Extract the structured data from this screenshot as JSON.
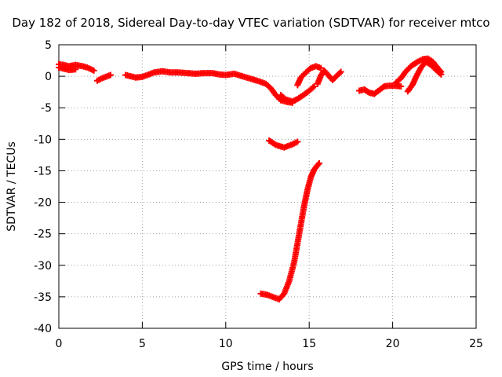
{
  "chart_data": {
    "type": "scatter",
    "title": "Day 182 of 2018, Sidereal Day-to-day VTEC variation (SDTVAR) for receiver mtco",
    "xlabel": "GPS time / hours",
    "ylabel": "SDTVAR / TECUs",
    "xlim": [
      0,
      25
    ],
    "ylim": [
      -40,
      5
    ],
    "xticks": [
      0,
      5,
      10,
      15,
      20,
      25
    ],
    "yticks": [
      5,
      0,
      -5,
      -10,
      -15,
      -20,
      -25,
      -30,
      -35,
      -40
    ],
    "grid": true,
    "marker": "plus",
    "color": "#ff0000",
    "series": [
      {
        "name": "seg1a",
        "points": [
          [
            0,
            1.9
          ],
          [
            0.3,
            1.8
          ],
          [
            0.6,
            1.6
          ],
          [
            1.0,
            1.8
          ],
          [
            1.4,
            1.6
          ],
          [
            1.7,
            1.4
          ],
          [
            2.1,
            0.9
          ]
        ]
      },
      {
        "name": "seg1b",
        "points": [
          [
            0,
            1.4
          ],
          [
            0.3,
            1.2
          ],
          [
            0.6,
            1.0
          ],
          [
            1.0,
            1.1
          ]
        ]
      },
      {
        "name": "seg2",
        "points": [
          [
            2.3,
            -0.7
          ],
          [
            2.6,
            -0.3
          ],
          [
            2.9,
            0.0
          ],
          [
            3.1,
            0.2
          ]
        ]
      },
      {
        "name": "seg3",
        "points": [
          [
            4.0,
            0.2
          ],
          [
            4.3,
            0.0
          ],
          [
            4.6,
            -0.2
          ],
          [
            5.0,
            -0.1
          ],
          [
            5.3,
            0.2
          ],
          [
            5.7,
            0.6
          ],
          [
            6.2,
            0.8
          ],
          [
            6.7,
            0.6
          ],
          [
            7.2,
            0.6
          ],
          [
            7.7,
            0.5
          ],
          [
            8.2,
            0.4
          ],
          [
            8.7,
            0.5
          ],
          [
            9.2,
            0.5
          ],
          [
            9.6,
            0.3
          ],
          [
            10.0,
            0.2
          ],
          [
            10.5,
            0.4
          ],
          [
            11.0,
            0.0
          ],
          [
            11.5,
            -0.4
          ],
          [
            12.0,
            -0.8
          ],
          [
            12.4,
            -1.2
          ],
          [
            12.7,
            -1.9
          ],
          [
            13.0,
            -3.0
          ],
          [
            13.3,
            -3.8
          ],
          [
            13.7,
            -4.1
          ],
          [
            14.0,
            -4.2
          ]
        ]
      },
      {
        "name": "seg4a",
        "points": [
          [
            13.3,
            -3.0
          ],
          [
            13.6,
            -3.7
          ],
          [
            14.0,
            -4.0
          ],
          [
            14.3,
            -3.6
          ],
          [
            14.7,
            -2.9
          ],
          [
            15.0,
            -2.3
          ],
          [
            15.3,
            -1.6
          ]
        ]
      },
      {
        "name": "seg4b",
        "points": [
          [
            14.3,
            -1.4
          ],
          [
            14.5,
            -0.2
          ],
          [
            14.8,
            0.6
          ],
          [
            15.1,
            1.3
          ],
          [
            15.4,
            1.6
          ],
          [
            15.7,
            1.3
          ]
        ]
      },
      {
        "name": "seg4c",
        "points": [
          [
            15.5,
            -1.2
          ],
          [
            15.7,
            0.1
          ],
          [
            15.9,
            0.9
          ],
          [
            16.1,
            0.3
          ],
          [
            16.4,
            -0.6
          ],
          [
            16.7,
            0.2
          ],
          [
            16.9,
            0.7
          ]
        ]
      },
      {
        "name": "seg5",
        "points": [
          [
            12.6,
            -10.2
          ],
          [
            13.0,
            -10.9
          ],
          [
            13.5,
            -11.3
          ],
          [
            14.0,
            -10.8
          ],
          [
            14.3,
            -10.4
          ]
        ]
      },
      {
        "name": "seg6",
        "points": [
          [
            12.1,
            -34.5
          ],
          [
            12.5,
            -34.7
          ],
          [
            12.9,
            -35.1
          ],
          [
            13.2,
            -35.4
          ],
          [
            13.5,
            -34.5
          ],
          [
            13.8,
            -32.5
          ],
          [
            14.1,
            -29.5
          ],
          [
            14.3,
            -26.5
          ],
          [
            14.5,
            -23.5
          ],
          [
            14.7,
            -20.5
          ],
          [
            14.9,
            -18.0
          ],
          [
            15.1,
            -16.0
          ],
          [
            15.3,
            -14.8
          ],
          [
            15.6,
            -13.8
          ]
        ]
      },
      {
        "name": "seg7",
        "points": [
          [
            18.0,
            -2.3
          ],
          [
            18.3,
            -2.1
          ],
          [
            18.6,
            -2.6
          ],
          [
            18.9,
            -2.8
          ],
          [
            19.2,
            -2.2
          ],
          [
            19.5,
            -1.6
          ],
          [
            19.8,
            -1.5
          ],
          [
            20.1,
            -1.5
          ],
          [
            20.5,
            -1.6
          ]
        ]
      },
      {
        "name": "seg8a",
        "points": [
          [
            20.2,
            -1.0
          ],
          [
            20.5,
            -0.3
          ],
          [
            20.8,
            0.8
          ],
          [
            21.1,
            1.6
          ],
          [
            21.5,
            2.3
          ],
          [
            21.8,
            2.7
          ],
          [
            22.1,
            2.8
          ],
          [
            22.4,
            2.3
          ],
          [
            22.7,
            1.3
          ],
          [
            22.9,
            0.7
          ]
        ]
      },
      {
        "name": "seg8b",
        "points": [
          [
            20.9,
            -2.4
          ],
          [
            21.2,
            -1.3
          ],
          [
            21.4,
            -0.1
          ],
          [
            21.7,
            1.4
          ],
          [
            22.0,
            2.3
          ],
          [
            22.3,
            1.8
          ],
          [
            22.6,
            1.0
          ],
          [
            22.9,
            0.3
          ]
        ]
      }
    ]
  }
}
